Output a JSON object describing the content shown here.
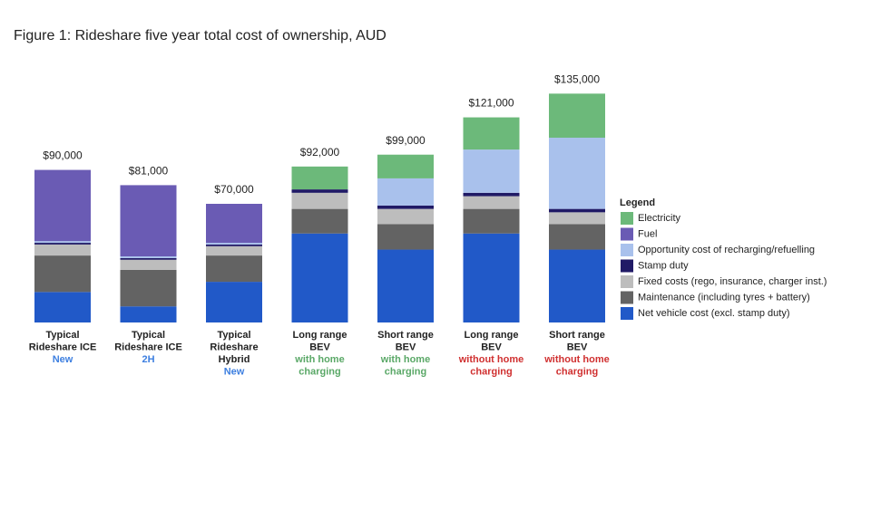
{
  "chart_data": {
    "type": "stacked_bar",
    "title": "Figure 1: Rideshare five year total cost of ownership, AUD",
    "categories": [
      [
        "Typical",
        "Rideshare ICE"
      ],
      [
        "Typical",
        "Rideshare ICE"
      ],
      [
        "Typical",
        "Rideshare",
        "Hybrid"
      ],
      [
        "Long range",
        "BEV"
      ],
      [
        "Short range",
        "BEV"
      ],
      [
        "Long range",
        "BEV"
      ],
      [
        "Short range",
        "BEV"
      ]
    ],
    "category_notes": [
      [
        "New"
      ],
      [
        "2H"
      ],
      [
        "New"
      ],
      [
        "with home",
        "charging"
      ],
      [
        "with home",
        "charging"
      ],
      [
        "without home",
        "charging"
      ],
      [
        "without home",
        "charging"
      ]
    ],
    "note_colors": [
      "#3d7fe0",
      "#3d7fe0",
      "#3d7fe0",
      "#5aa867",
      "#5aa867",
      "#d03030",
      "#d03030"
    ],
    "series": [
      {
        "name": "Net vehicle cost (excl. stamp duty)",
        "color": "#2159c8",
        "values": [
          18000,
          9500,
          24000,
          52500,
          43000,
          52500,
          43000
        ]
      },
      {
        "name": "Maintenance (including tyres + battery)",
        "color": "#636363",
        "values": [
          21500,
          21500,
          15500,
          14500,
          15000,
          14500,
          15000
        ]
      },
      {
        "name": "Fixed costs (rego, insurance, charger inst.)",
        "color": "#bdbdbd",
        "values": [
          6500,
          6000,
          5500,
          9500,
          9000,
          7500,
          7000
        ]
      },
      {
        "name": "Stamp duty",
        "color": "#201a66",
        "values": [
          1000,
          1000,
          1000,
          2000,
          2000,
          2000,
          2000
        ]
      },
      {
        "name": "Opportunity cost of recharging/refuelling",
        "color": "#a9c1ec",
        "values": [
          1000,
          1000,
          1000,
          0,
          16000,
          25500,
          42000
        ]
      },
      {
        "name": "Fuel",
        "color": "#6a5bb4",
        "values": [
          42000,
          42000,
          23000,
          0,
          0,
          0,
          0
        ]
      },
      {
        "name": "Electricity",
        "color": "#6cb97a",
        "values": [
          0,
          0,
          0,
          13500,
          14000,
          19000,
          26000
        ]
      }
    ],
    "totals": [
      90000,
      81000,
      70000,
      92000,
      99000,
      121000,
      135000
    ],
    "total_labels": [
      "$90,000",
      "$81,000",
      "$70,000",
      "$92,000",
      "$99,000",
      "$121,000",
      "$135,000"
    ],
    "legend_title": "Legend",
    "ylim": [
      0,
      140000
    ]
  }
}
